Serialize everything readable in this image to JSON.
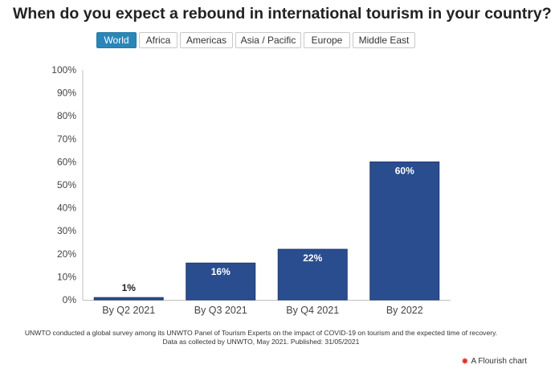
{
  "title": "When do you expect a rebound in international tourism in your country?",
  "tabs": [
    {
      "label": "World",
      "active": true
    },
    {
      "label": "Africa",
      "active": false
    },
    {
      "label": "Americas",
      "active": false
    },
    {
      "label": "Asia / Pacific",
      "active": false
    },
    {
      "label": "Europe",
      "active": false
    },
    {
      "label": "Middle East",
      "active": false
    }
  ],
  "chart_data": {
    "type": "bar",
    "categories": [
      "By Q2 2021",
      "By Q3 2021",
      "By Q4 2021",
      "By 2022"
    ],
    "values": [
      1,
      16,
      22,
      60
    ],
    "data_labels": [
      "1%",
      "16%",
      "22%",
      "60%"
    ],
    "yticks": [
      "0%",
      "10%",
      "20%",
      "30%",
      "40%",
      "50%",
      "60%",
      "70%",
      "80%",
      "90%",
      "100%"
    ],
    "ylim": [
      0,
      100
    ],
    "bar_color": "#2a4d8f",
    "grid": false
  },
  "footnote": {
    "line1": "UNWTO conducted a global survey among its UNWTO Panel of Tourism Experts on the impact of COVID-19 on tourism and the expected time of recovery.",
    "line2": "Data as collected by UNWTO, May 2021. Published: 31/05/2021"
  },
  "brand": {
    "label": "A Flourish chart",
    "icon": "flourish-star-icon"
  }
}
